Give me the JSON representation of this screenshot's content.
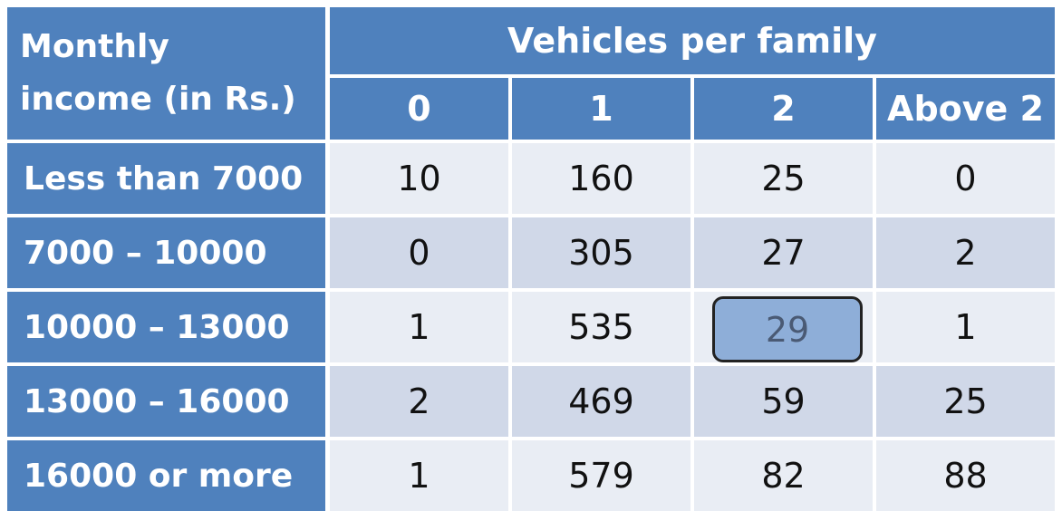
{
  "header": {
    "corner_line1": "Monthly",
    "corner_line2": "income (in Rs.)",
    "group_title": "Vehicles per family",
    "columns": [
      "0",
      "1",
      "2",
      "Above 2"
    ]
  },
  "rows": [
    {
      "label": "Less than 7000",
      "cells": [
        "10",
        "160",
        "25",
        "0"
      ]
    },
    {
      "label": "7000 – 10000",
      "cells": [
        "0",
        "305",
        "27",
        "2"
      ]
    },
    {
      "label": "10000 – 13000",
      "cells": [
        "1",
        "535",
        "29",
        "1"
      ]
    },
    {
      "label": "13000 – 16000",
      "cells": [
        "2",
        "469",
        "59",
        "25"
      ]
    },
    {
      "label": "16000 or more",
      "cells": [
        "1",
        "579",
        "82",
        "88"
      ]
    }
  ],
  "highlight": {
    "row": 2,
    "col": 2,
    "value": "29"
  },
  "colors": {
    "header_bg": "#4f81bd",
    "row_light": "#e9edf4",
    "row_dark": "#d0d8e8",
    "highlight_bg": "#8eaed8"
  }
}
